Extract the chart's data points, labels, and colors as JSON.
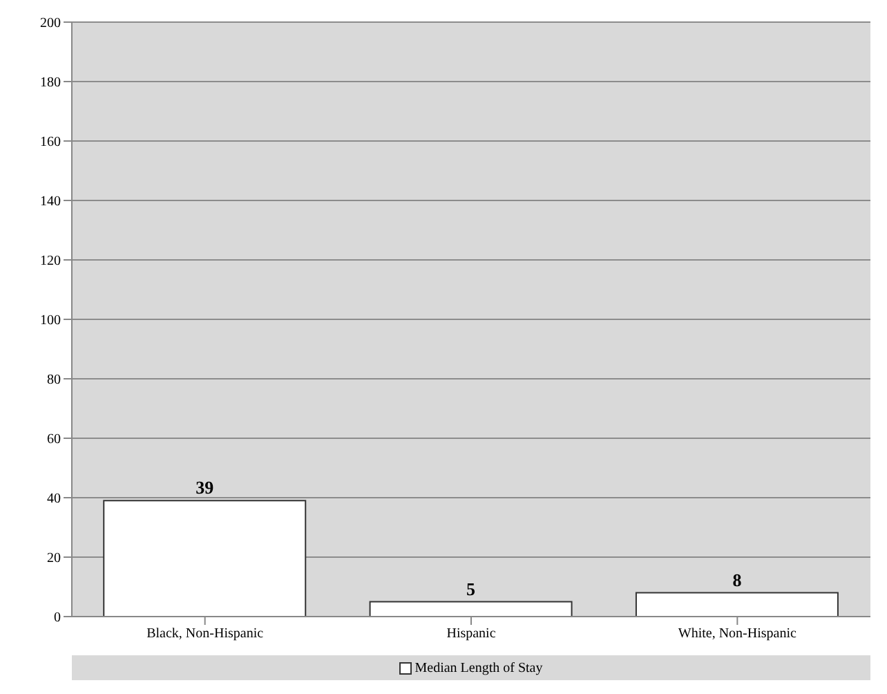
{
  "chart_data": {
    "type": "bar",
    "categories": [
      "Black, Non-Hispanic",
      "Hispanic",
      "White, Non-Hispanic"
    ],
    "series": [
      {
        "name": "Median Length of Stay",
        "color": "#ffffff",
        "values": [
          39,
          5,
          8
        ]
      }
    ],
    "ylim": [
      0,
      200
    ],
    "yticks": [
      0,
      20,
      40,
      60,
      80,
      100,
      120,
      140,
      160,
      180,
      200
    ],
    "grid": "y",
    "legend": "bottom",
    "data_labels": true
  }
}
